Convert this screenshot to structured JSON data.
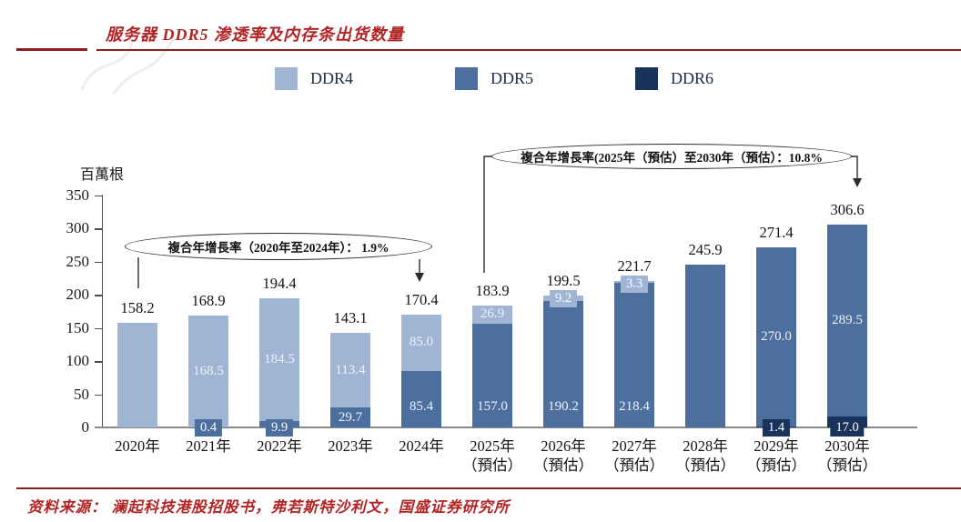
{
  "header": {
    "title": "服务器 DDR5 渗透率及内存条出货数量"
  },
  "legend": {
    "items": [
      {
        "label": "DDR4",
        "color": "#a0b4d4"
      },
      {
        "label": "DDR5",
        "color": "#4d6f9e"
      },
      {
        "label": "DDR6",
        "color": "#1a335c"
      }
    ]
  },
  "annotations": [
    {
      "text": "複合年增長率（2020年至2024年）： 1.9%"
    },
    {
      "text": "複合年增長率(2025年（預估）至2030年（預估）：10.8%"
    }
  ],
  "footer": {
    "source": "资料来源： 澜起科技港股招股书，弗若斯特沙利文，国盛证券研究所"
  },
  "chart_data": {
    "type": "bar",
    "stacked": true,
    "title": "服务器 DDR5 渗透率及内存条出货数量",
    "ylabel": "百萬根",
    "ylim": [
      0,
      350
    ],
    "yticks": [
      0,
      50,
      100,
      150,
      200,
      250,
      300,
      350
    ],
    "grid": false,
    "legend_position": "top",
    "series": [
      {
        "name": "DDR4",
        "color": "#a0b4d4",
        "values": [
          158.2,
          168.5,
          184.5,
          113.4,
          85.0,
          26.9,
          9.2,
          3.3,
          null,
          null,
          null
        ]
      },
      {
        "name": "DDR5",
        "color": "#4d6f9e",
        "values": [
          null,
          0.4,
          9.9,
          29.7,
          85.4,
          157.0,
          190.2,
          218.4,
          245.9,
          270.0,
          289.5
        ]
      },
      {
        "name": "DDR6",
        "color": "#1a335c",
        "values": [
          null,
          null,
          null,
          null,
          null,
          null,
          null,
          null,
          null,
          1.4,
          17.0
        ]
      }
    ],
    "bars": [
      {
        "cat": "2020年",
        "sub": "",
        "total": "158.2",
        "segments": [
          {
            "series": "DDR4",
            "value": 158.2,
            "label": "",
            "label_mode": "none"
          }
        ]
      },
      {
        "cat": "2021年",
        "sub": "",
        "total": "168.9",
        "segments": [
          {
            "series": "DDR5",
            "value": 0.4,
            "label": "0.4",
            "label_mode": "box_bottom"
          },
          {
            "series": "DDR4",
            "value": 168.5,
            "label": "168.5",
            "label_mode": "inside"
          }
        ]
      },
      {
        "cat": "2022年",
        "sub": "",
        "total": "194.4",
        "segments": [
          {
            "series": "DDR5",
            "value": 9.9,
            "label": "9.9",
            "label_mode": "box_bottom"
          },
          {
            "series": "DDR4",
            "value": 184.5,
            "label": "184.5",
            "label_mode": "inside"
          }
        ]
      },
      {
        "cat": "2023年",
        "sub": "",
        "total": "143.1",
        "segments": [
          {
            "series": "DDR5",
            "value": 29.7,
            "label": "29.7",
            "label_mode": "inside"
          },
          {
            "series": "DDR4",
            "value": 113.4,
            "label": "113.4",
            "label_mode": "inside"
          }
        ]
      },
      {
        "cat": "2024年",
        "sub": "",
        "total": "170.4",
        "segments": [
          {
            "series": "DDR5",
            "value": 85.4,
            "label": "85.4",
            "label_mode": "inside",
            "label_pos": "low"
          },
          {
            "series": "DDR4",
            "value": 85.0,
            "label": "85.0",
            "label_mode": "inside"
          }
        ]
      },
      {
        "cat": "2025年",
        "sub": "（預估）",
        "total": "183.9",
        "segments": [
          {
            "series": "DDR5",
            "value": 157.0,
            "label": "157.0",
            "label_mode": "inside",
            "label_pos": "low"
          },
          {
            "series": "DDR4",
            "value": 26.9,
            "label": "26.9",
            "label_mode": "inside"
          }
        ]
      },
      {
        "cat": "2026年",
        "sub": "（預估）",
        "total": "199.5",
        "segments": [
          {
            "series": "DDR5",
            "value": 190.2,
            "label": "190.2",
            "label_mode": "inside",
            "label_pos": "low"
          },
          {
            "series": "DDR4",
            "value": 9.2,
            "label": "9.2",
            "label_mode": "box_top"
          }
        ]
      },
      {
        "cat": "2027年",
        "sub": "（預估）",
        "total": "221.7",
        "segments": [
          {
            "series": "DDR5",
            "value": 218.4,
            "label": "218.4",
            "label_mode": "inside",
            "label_pos": "low"
          },
          {
            "series": "DDR4",
            "value": 3.3,
            "label": "3.3",
            "label_mode": "box_top"
          }
        ]
      },
      {
        "cat": "2028年",
        "sub": "（預估）",
        "total": "245.9",
        "segments": [
          {
            "series": "DDR5",
            "value": 245.9,
            "label": "",
            "label_mode": "none"
          }
        ]
      },
      {
        "cat": "2029年",
        "sub": "（預估）",
        "total": "271.4",
        "segments": [
          {
            "series": "DDR6",
            "value": 1.4,
            "label": "1.4",
            "label_mode": "box_bottom"
          },
          {
            "series": "DDR5",
            "value": 270.0,
            "label": "270.0",
            "label_mode": "inside"
          }
        ]
      },
      {
        "cat": "2030年",
        "sub": "（預估）",
        "total": "306.6",
        "segments": [
          {
            "series": "DDR6",
            "value": 17.0,
            "label": "17.0",
            "label_mode": "box_bottom"
          },
          {
            "series": "DDR5",
            "value": 289.5,
            "label": "289.5",
            "label_mode": "inside"
          }
        ]
      }
    ]
  }
}
